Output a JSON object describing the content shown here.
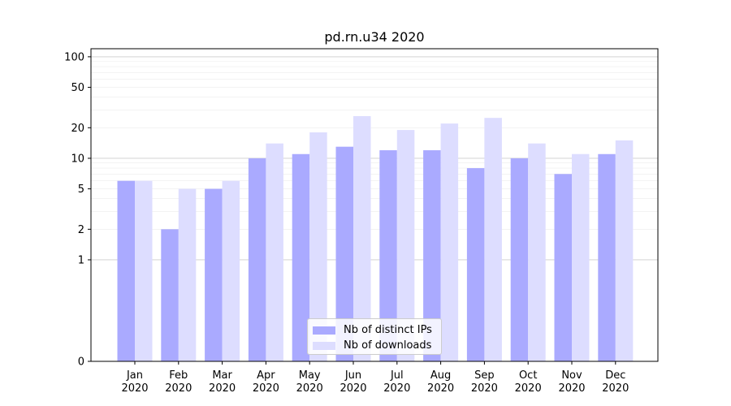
{
  "chart_data": {
    "type": "bar",
    "title": "pd.rn.u34 2020",
    "xlabel": "",
    "ylabel": "",
    "y_scale": "symlog",
    "ylim": [
      0,
      120
    ],
    "y_ticks": [
      0,
      1,
      2,
      5,
      10,
      20,
      50,
      100
    ],
    "y_tick_labels": [
      "0",
      "1",
      "2",
      "5",
      "10",
      "20",
      "50",
      "100"
    ],
    "grid": true,
    "categories": [
      "Jan\n2020",
      "Feb\n2020",
      "Mar\n2020",
      "Apr\n2020",
      "May\n2020",
      "Jun\n2020",
      "Jul\n2020",
      "Aug\n2020",
      "Sep\n2020",
      "Oct\n2020",
      "Nov\n2020",
      "Dec\n2020"
    ],
    "series": [
      {
        "name": "Nb of distinct IPs",
        "color": "#aaaaff",
        "values": [
          6,
          2,
          5,
          10,
          11,
          13,
          12,
          12,
          8,
          10,
          7,
          11
        ]
      },
      {
        "name": "Nb of downloads",
        "color": "#ddddff",
        "values": [
          6,
          5,
          6,
          14,
          18,
          26,
          19,
          22,
          25,
          14,
          11,
          15
        ]
      }
    ],
    "legend_position": "bottom-center"
  }
}
